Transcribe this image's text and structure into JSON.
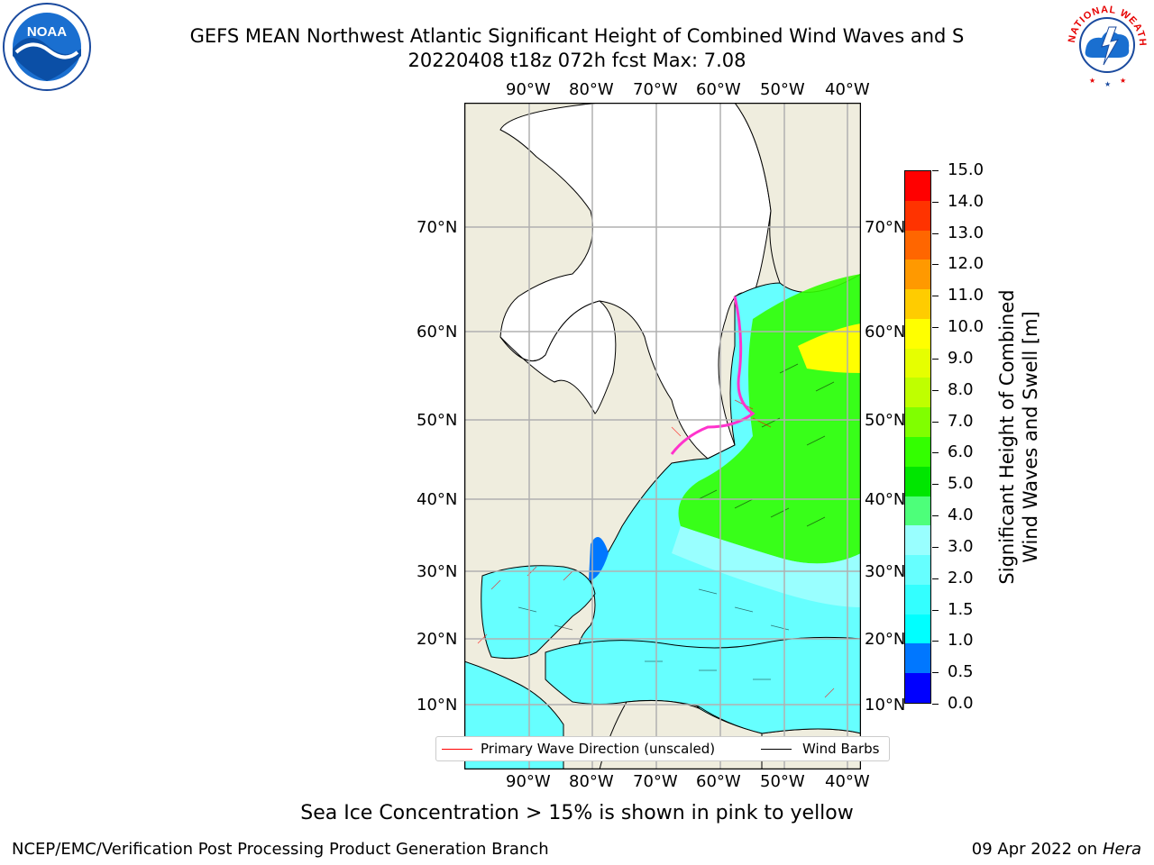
{
  "title": {
    "line1": "GEFS MEAN Northwest Atlantic Significant Height of Combined Wind Waves and S",
    "line2": "20220408 t18z 072h fcst   Max: 7.08"
  },
  "map": {
    "lon_labels": [
      "90°W",
      "80°W",
      "70°W",
      "60°W",
      "50°W",
      "40°W"
    ],
    "lat_labels": [
      "70°N",
      "60°N",
      "50°N",
      "40°N",
      "30°N",
      "20°N",
      "10°N"
    ],
    "colors": {
      "land": "#efedde",
      "ice": "#ffffff",
      "ocean_low": "#00ffff",
      "ocean_mid": "#99ffff",
      "ocean_high": "#33ff00",
      "grid": "#b0b0b0"
    }
  },
  "colorbar": {
    "label_line1": "Significant Height of Combined",
    "label_line2": "Wind Waves and Swell [m]",
    "ticks": [
      "15.0",
      "14.0",
      "13.0",
      "12.0",
      "11.0",
      "10.0",
      "9.0",
      "8.0",
      "7.0",
      "6.0",
      "5.0",
      "4.0",
      "3.0",
      "2.0",
      "1.5",
      "1.0",
      "0.5",
      "0.0"
    ],
    "colors": [
      "#0000ff",
      "#0077ff",
      "#00ffff",
      "#33ffff",
      "#66ffff",
      "#99ffff",
      "#4dff7a",
      "#00e600",
      "#33ff00",
      "#80ff00",
      "#bfff00",
      "#e6ff00",
      "#ffff00",
      "#ffcc00",
      "#ff9900",
      "#ff6600",
      "#ff3300",
      "#ff0000"
    ]
  },
  "legend": {
    "wave_label": "Primary Wave Direction (unscaled)",
    "barb_label": "Wind Barbs"
  },
  "note": "Sea Ice Concentration > 15% is shown in pink to yellow",
  "footer": {
    "left": "NCEP/EMC/Verification Post Processing Product Generation Branch",
    "right_prefix": "09 Apr 2022 on ",
    "right_host": "Hera"
  },
  "logos": {
    "noaa_text": "NOAA",
    "nws_text": "NATIONAL WEATHER SERVICE"
  }
}
